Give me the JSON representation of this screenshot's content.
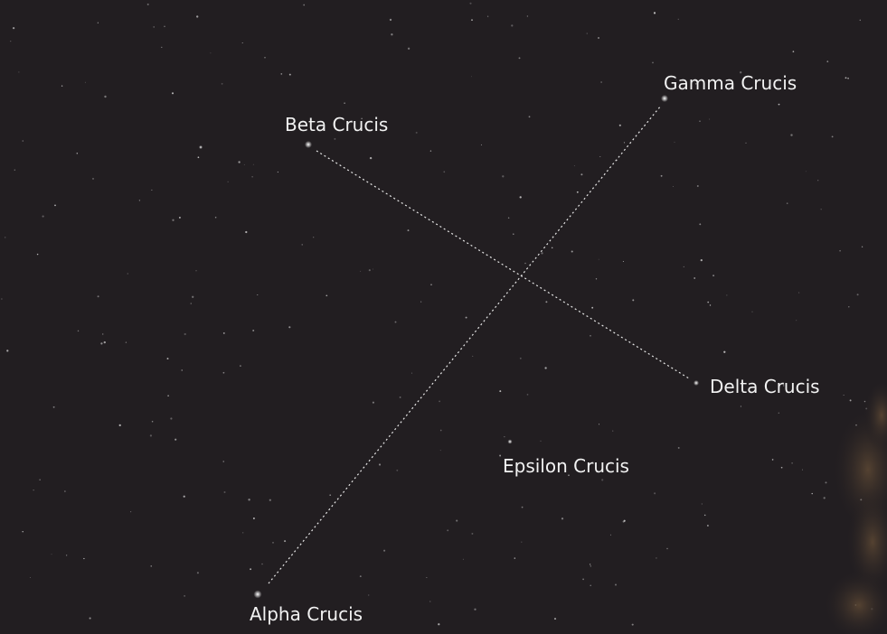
{
  "stars": [
    "Gamma Crucis",
    "Beta Crucis",
    "Delta Crucis",
    "Epsilon Crucis",
    "Alpha Crucis"
  ]
}
